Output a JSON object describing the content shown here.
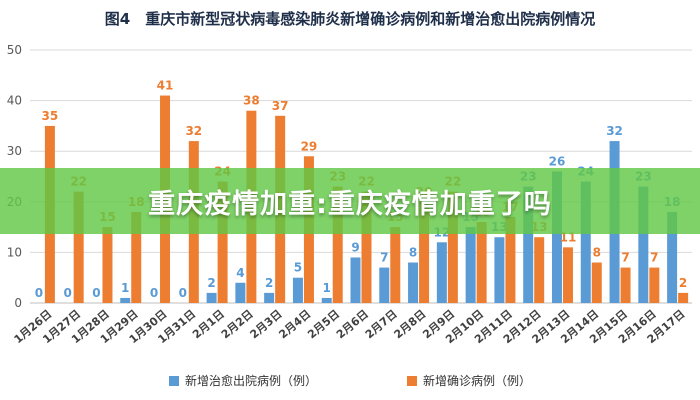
{
  "banner": {
    "text": "重庆疫情加重:重庆疫情加重了吗"
  },
  "chart_data": {
    "type": "bar",
    "title": "图4　重庆市新型冠状病毒感染肺炎新增确诊病例和新增治愈出院病例情况",
    "categories": [
      "1月26日",
      "1月27日",
      "1月28日",
      "1月29日",
      "1月30日",
      "1月31日",
      "2月1日",
      "2月2日",
      "2月3日",
      "2月4日",
      "2月5日",
      "2月6日",
      "2月7日",
      "2月8日",
      "2月9日",
      "2月10日",
      "2月11日",
      "2月12日",
      "2月13日",
      "2月14日",
      "2月15日",
      "2月16日",
      "2月17日"
    ],
    "series": [
      {
        "name": "新增治愈出院病例（例）",
        "color": "#5b9bd5",
        "values": [
          0,
          0,
          0,
          1,
          0,
          0,
          2,
          4,
          2,
          5,
          1,
          9,
          7,
          8,
          12,
          15,
          13,
          23,
          26,
          24,
          32,
          23,
          18
        ]
      },
      {
        "name": "新增确诊病例（例）",
        "color": "#ed7d31",
        "values": [
          35,
          22,
          15,
          18,
          41,
          32,
          24,
          38,
          37,
          29,
          23,
          22,
          15,
          20,
          22,
          16,
          17,
          13,
          11,
          8,
          7,
          7,
          2
        ]
      }
    ],
    "ylim": [
      0,
      50
    ],
    "yticks": [
      0,
      10,
      20,
      30,
      40,
      50
    ],
    "grid": true,
    "legend": "bottom"
  }
}
